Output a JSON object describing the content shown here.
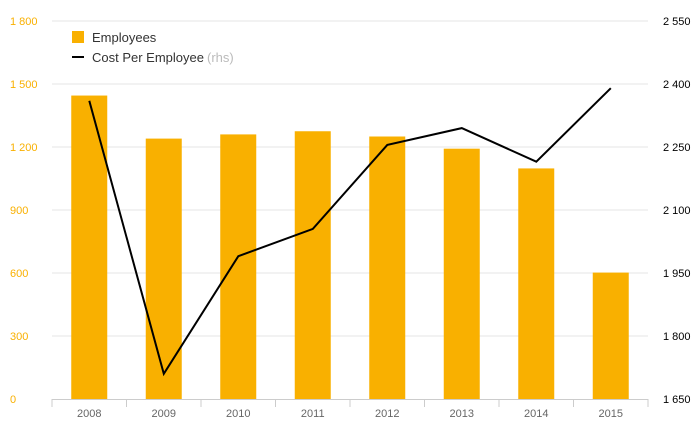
{
  "chart_data": {
    "type": "bar",
    "categories": [
      "2008",
      "2009",
      "2010",
      "2011",
      "2012",
      "2013",
      "2014",
      "2015"
    ],
    "series": [
      {
        "name": "Employees",
        "type": "bar",
        "axis": "left",
        "color": "#F9B000",
        "values": [
          1445,
          1240,
          1260,
          1275,
          1250,
          1192,
          1098,
          602
        ]
      },
      {
        "name": "Cost Per Employee",
        "type": "line",
        "axis": "right",
        "color": "#000000",
        "values": [
          2360,
          1710,
          1990,
          2055,
          2255,
          2295,
          2215,
          2390
        ]
      }
    ],
    "y_left": {
      "lim": [
        0,
        1800
      ],
      "ticks": [
        0,
        300,
        600,
        900,
        1200,
        1500,
        1800
      ],
      "tick_labels": [
        "0",
        "300",
        "600",
        "900",
        "1 200",
        "1 500",
        "1 800"
      ],
      "tick_color": "#F9B000"
    },
    "y_right": {
      "lim": [
        1650,
        2550
      ],
      "ticks": [
        1650,
        1800,
        1950,
        2100,
        2250,
        2400,
        2550
      ],
      "tick_labels": [
        "1 650",
        "1 800",
        "1 950",
        "2 100",
        "2 250",
        "2 400",
        "2 550"
      ],
      "tick_color": "#000000"
    },
    "legend": {
      "placement": "top-left",
      "employees_label": "Employees",
      "cost_label": "Cost Per Employee",
      "cost_note": "(rhs)"
    },
    "grid": true,
    "colors": {
      "bar": "#F9B000",
      "line": "#000000",
      "grid": "#e6e6e6",
      "axis": "#cccccc"
    }
  }
}
